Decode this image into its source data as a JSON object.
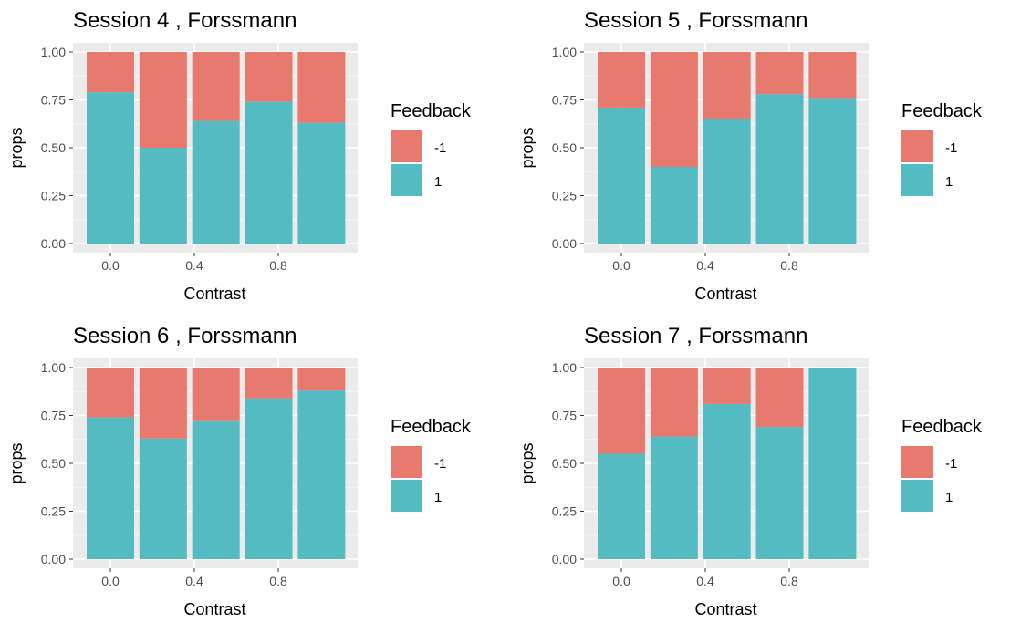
{
  "colors": {
    "neg": "#E8796F",
    "pos": "#55BBC2",
    "panel_bg": "#EBEBEB",
    "grid_major": "#FFFFFF",
    "grid_minor": "#F5F5F5"
  },
  "chart_data": [
    {
      "type": "bar",
      "title": "Session  4 , Forssmann",
      "xlabel": "Contrast",
      "ylabel": "props",
      "x": [
        0.0,
        0.25,
        0.5,
        0.75,
        1.0
      ],
      "xticks": [
        "0.0",
        "0.4",
        "0.8"
      ],
      "xtick_values": [
        0.0,
        0.4,
        0.8
      ],
      "yticks": [
        "0.00",
        "0.25",
        "0.50",
        "0.75",
        "1.00"
      ],
      "ylim": [
        0,
        1
      ],
      "stacked": true,
      "legend": {
        "title": "Feedback",
        "position": "right"
      },
      "series": [
        {
          "name": "-1",
          "values": [
            0.21,
            0.5,
            0.36,
            0.26,
            0.37
          ]
        },
        {
          "name": "1",
          "values": [
            0.79,
            0.5,
            0.64,
            0.74,
            0.63
          ]
        }
      ]
    },
    {
      "type": "bar",
      "title": "Session  5 , Forssmann",
      "xlabel": "Contrast",
      "ylabel": "props",
      "x": [
        0.0,
        0.25,
        0.5,
        0.75,
        1.0
      ],
      "xticks": [
        "0.0",
        "0.4",
        "0.8"
      ],
      "xtick_values": [
        0.0,
        0.4,
        0.8
      ],
      "yticks": [
        "0.00",
        "0.25",
        "0.50",
        "0.75",
        "1.00"
      ],
      "ylim": [
        0,
        1
      ],
      "stacked": true,
      "legend": {
        "title": "Feedback",
        "position": "right"
      },
      "series": [
        {
          "name": "-1",
          "values": [
            0.29,
            0.6,
            0.35,
            0.22,
            0.24
          ]
        },
        {
          "name": "1",
          "values": [
            0.71,
            0.4,
            0.65,
            0.78,
            0.76
          ]
        }
      ]
    },
    {
      "type": "bar",
      "title": "Session  6 , Forssmann",
      "xlabel": "Contrast",
      "ylabel": "props",
      "x": [
        0.0,
        0.25,
        0.5,
        0.75,
        1.0
      ],
      "xticks": [
        "0.0",
        "0.4",
        "0.8"
      ],
      "xtick_values": [
        0.0,
        0.4,
        0.8
      ],
      "yticks": [
        "0.00",
        "0.25",
        "0.50",
        "0.75",
        "1.00"
      ],
      "ylim": [
        0,
        1
      ],
      "stacked": true,
      "legend": {
        "title": "Feedback",
        "position": "right"
      },
      "series": [
        {
          "name": "-1",
          "values": [
            0.26,
            0.37,
            0.28,
            0.16,
            0.12
          ]
        },
        {
          "name": "1",
          "values": [
            0.74,
            0.63,
            0.72,
            0.84,
            0.88
          ]
        }
      ]
    },
    {
      "type": "bar",
      "title": "Session  7 , Forssmann",
      "xlabel": "Contrast",
      "ylabel": "props",
      "x": [
        0.0,
        0.25,
        0.5,
        0.75,
        1.0
      ],
      "xticks": [
        "0.0",
        "0.4",
        "0.8"
      ],
      "xtick_values": [
        0.0,
        0.4,
        0.8
      ],
      "yticks": [
        "0.00",
        "0.25",
        "0.50",
        "0.75",
        "1.00"
      ],
      "ylim": [
        0,
        1
      ],
      "stacked": true,
      "legend": {
        "title": "Feedback",
        "position": "right"
      },
      "series": [
        {
          "name": "-1",
          "values": [
            0.45,
            0.36,
            0.19,
            0.31,
            0.0
          ]
        },
        {
          "name": "1",
          "values": [
            0.55,
            0.64,
            0.81,
            0.69,
            1.0
          ]
        }
      ]
    }
  ]
}
